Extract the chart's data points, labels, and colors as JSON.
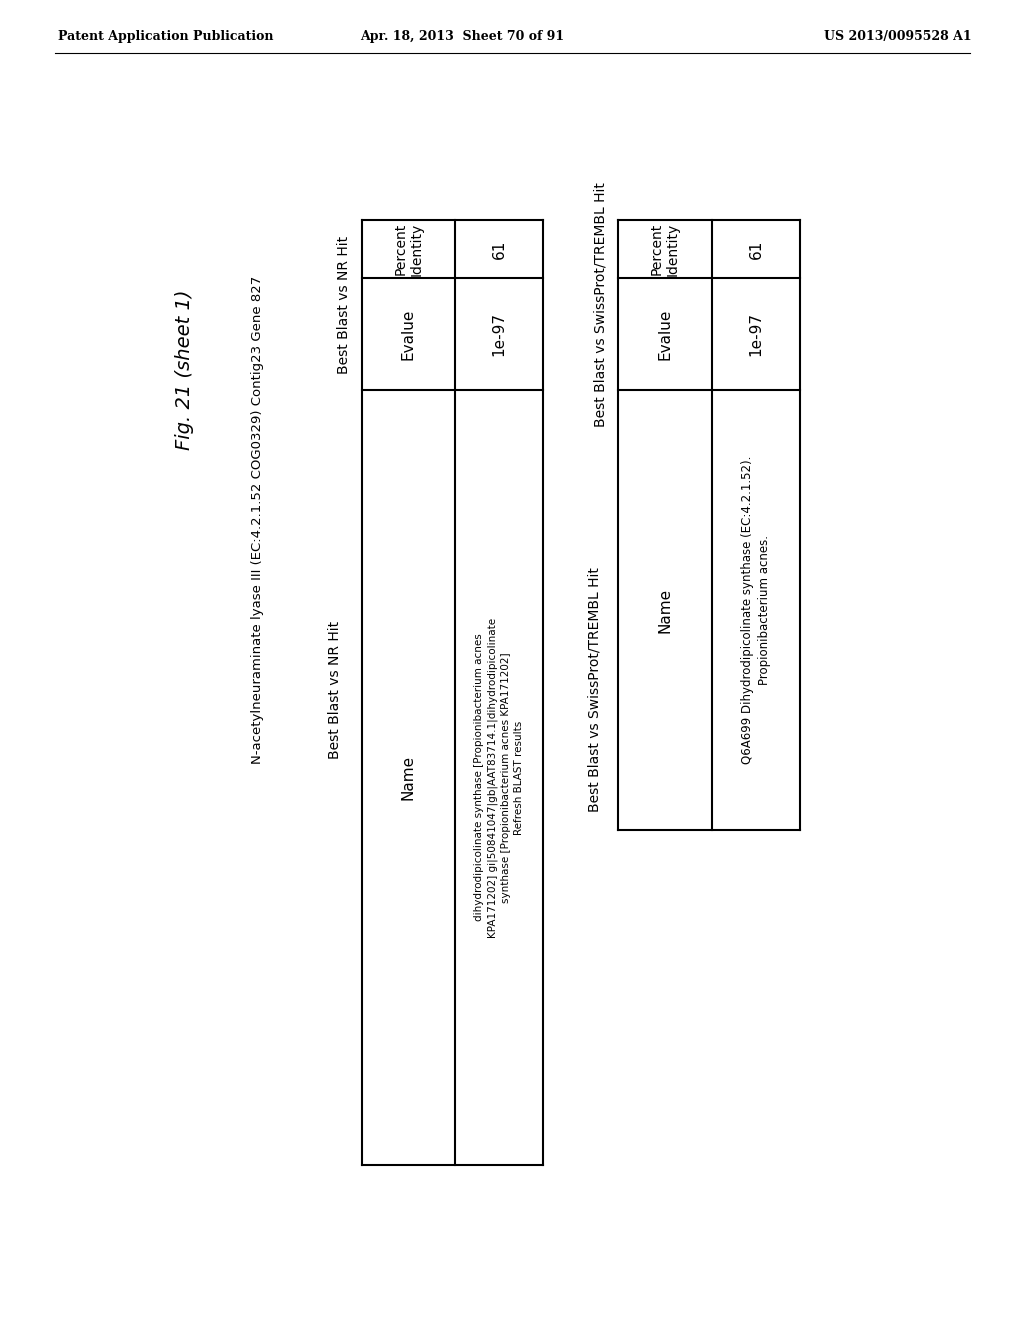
{
  "header_left": "Patent Application Publication",
  "header_mid": "Apr. 18, 2013  Sheet 70 of 91",
  "header_right": "US 2013/0095528 A1",
  "fig_title": "Fig. 21 (sheet 1)",
  "gene_info": "N-acetylneuraminate lyase III (EC:4.2.1.52 COG0329) Contig23 Gene 827",
  "table1_section": "Best Blast vs NR Hit",
  "table1_name": "dihydrodipicolinate synthase [Propionibacterium acnes\nKPA171202] gi|50841047|gb|AAT83714.1|dihydrodipicolinate\nsynthase [Propionibacterium acnes KPA171202]\nRefresh BLAST results",
  "table1_name_plain": "dihydrodipicolinate synthase [Propionibacterium acnes\nKPA171202] gi|50841047|gb|AAT83714.1|dihydrodipicolinate\nsynthase [Propionibacterium acnes KPA171202]\nRefresh ",
  "table1_blast": "BLAST",
  "table1_after_blast": " results",
  "table1_evalue": "1e-97",
  "table1_pct": "61",
  "table2_section": "Best Blast vs SwissProt/TREMBL Hit",
  "table2_name": "Q6A699 Dihydrodipicolinate synthase (EC:4.2.1.52).\nPropionibacterium acnes.",
  "table2_evalue": "1e-97",
  "table2_pct": "61",
  "col_name": "Name",
  "col_evalue": "Evalue",
  "col_pct": "Percent\nIdentity",
  "lw": 1.5,
  "bg": "#ffffff"
}
